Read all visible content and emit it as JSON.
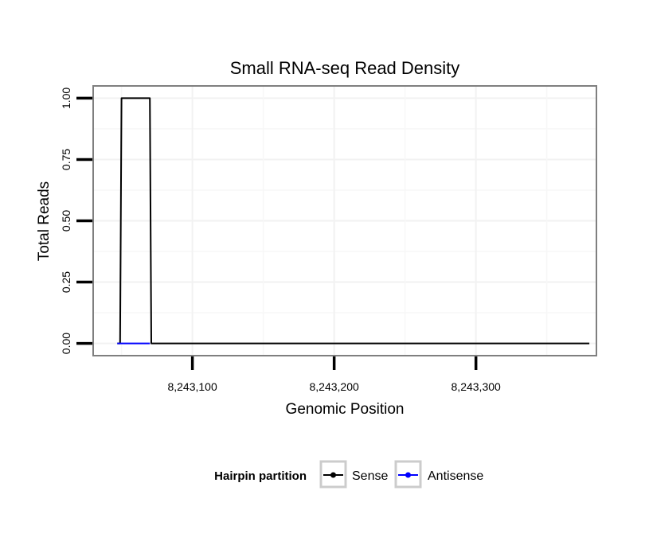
{
  "chart_data": {
    "type": "line",
    "title": "Small RNA-seq Read Density",
    "xlabel": "Genomic Position",
    "ylabel": "Total Reads",
    "xlim": [
      8243030,
      8243385
    ],
    "ylim": [
      -0.05,
      1.05
    ],
    "grid": true,
    "x_ticks": [
      8243100,
      8243200,
      8243300
    ],
    "x_tick_labels": [
      "8,243,100",
      "8,243,200",
      "8,243,300"
    ],
    "y_ticks": [
      0.0,
      0.25,
      0.5,
      0.75,
      1.0
    ],
    "y_tick_labels": [
      "0.00",
      "0.25",
      "0.50",
      "0.75",
      "1.00"
    ],
    "legend": {
      "title": "Hairpin partition",
      "placement": "bottom",
      "entries": [
        {
          "name": "Sense",
          "color": "#000000"
        },
        {
          "name": "Antisense",
          "color": "#0000ff"
        }
      ]
    },
    "series": [
      {
        "name": "Sense",
        "color": "#000000",
        "x": [
          8243047,
          8243049,
          8243050,
          8243070,
          8243071,
          8243073,
          8243380
        ],
        "y": [
          0,
          0,
          1,
          1,
          0,
          0,
          0
        ]
      },
      {
        "name": "Antisense",
        "color": "#0000ff",
        "x": [
          8243047,
          8243070
        ],
        "y": [
          0,
          0
        ]
      }
    ]
  }
}
